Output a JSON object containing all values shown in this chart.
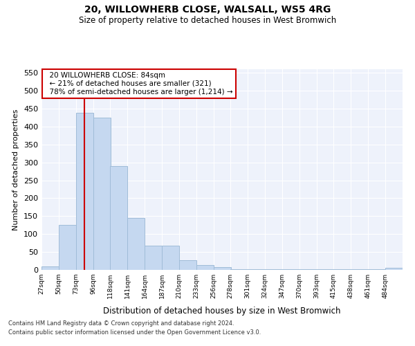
{
  "title": "20, WILLOWHERB CLOSE, WALSALL, WS5 4RG",
  "subtitle": "Size of property relative to detached houses in West Bromwich",
  "xlabel": "Distribution of detached houses by size in West Bromwich",
  "ylabel": "Number of detached properties",
  "footnote1": "Contains HM Land Registry data © Crown copyright and database right 2024.",
  "footnote2": "Contains public sector information licensed under the Open Government Licence v3.0.",
  "annotation_title": "20 WILLOWHERB CLOSE: 84sqm",
  "annotation_line1": "← 21% of detached houses are smaller (321)",
  "annotation_line2": "78% of semi-detached houses are larger (1,214) →",
  "property_size": 84,
  "bar_color": "#c5d8f0",
  "bar_edge_color": "#a0bcd8",
  "redline_color": "#cc0000",
  "background_color": "#eef2fb",
  "bins": [
    27,
    50,
    73,
    96,
    118,
    141,
    164,
    187,
    210,
    233,
    256,
    278,
    301,
    324,
    347,
    370,
    393,
    415,
    438,
    461,
    484,
    507
  ],
  "bin_labels": [
    "27sqm",
    "50sqm",
    "73sqm",
    "96sqm",
    "118sqm",
    "141sqm",
    "164sqm",
    "187sqm",
    "210sqm",
    "233sqm",
    "256sqm",
    "278sqm",
    "301sqm",
    "324sqm",
    "347sqm",
    "370sqm",
    "393sqm",
    "415sqm",
    "438sqm",
    "461sqm",
    "484sqm"
  ],
  "counts": [
    10,
    125,
    438,
    425,
    290,
    145,
    68,
    68,
    27,
    13,
    8,
    2,
    2,
    1,
    1,
    1,
    1,
    1,
    1,
    1,
    5
  ],
  "ylim": [
    0,
    560
  ],
  "yticks": [
    0,
    50,
    100,
    150,
    200,
    250,
    300,
    350,
    400,
    450,
    500,
    550
  ]
}
